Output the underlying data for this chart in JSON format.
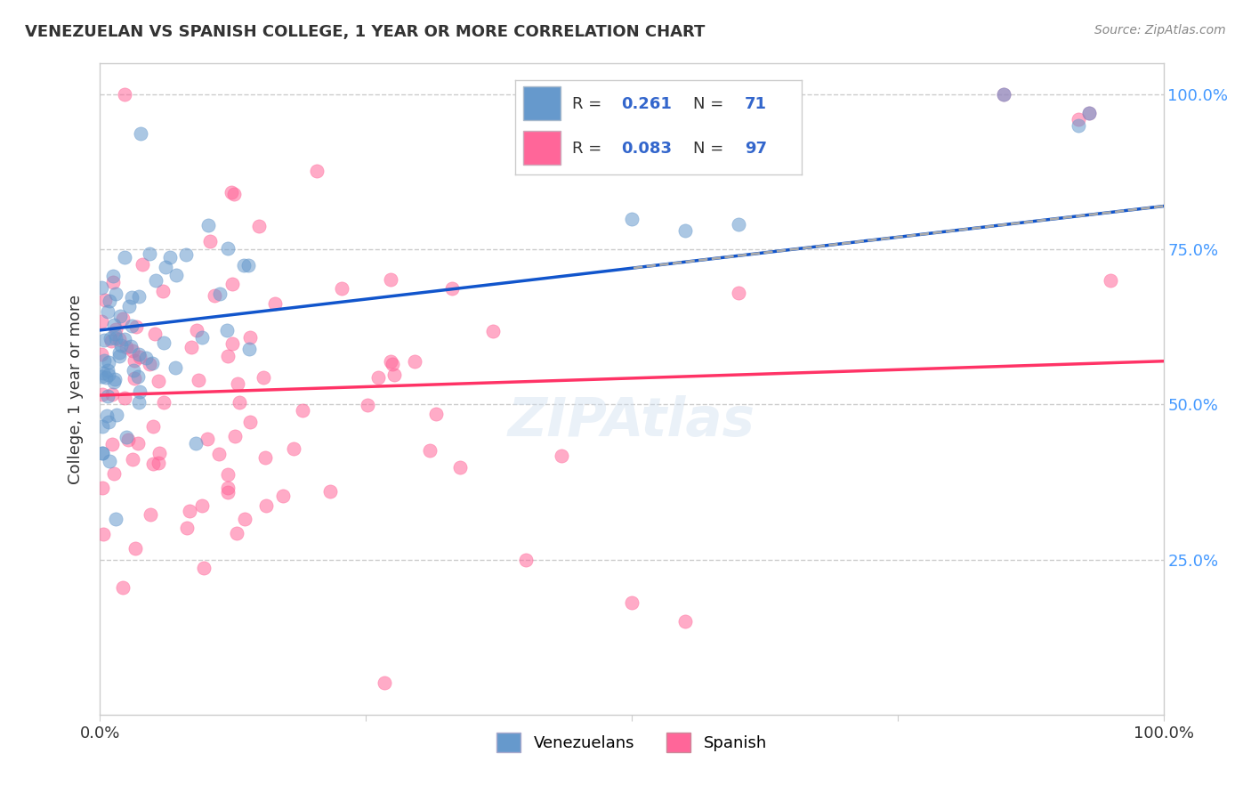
{
  "title": "VENEZUELAN VS SPANISH COLLEGE, 1 YEAR OR MORE CORRELATION CHART",
  "source": "Source: ZipAtlas.com",
  "ylabel": "College, 1 year or more",
  "legend_label1": "Venezuelans",
  "legend_label2": "Spanish",
  "R1": 0.261,
  "N1": 71,
  "R2": 0.083,
  "N2": 97,
  "color_blue": "#6699CC",
  "color_pink": "#FF6699",
  "color_line_blue": "#1155CC",
  "color_line_pink": "#FF3366",
  "watermark": "ZIPAtlas",
  "watermark_color": "#CCDDEE"
}
